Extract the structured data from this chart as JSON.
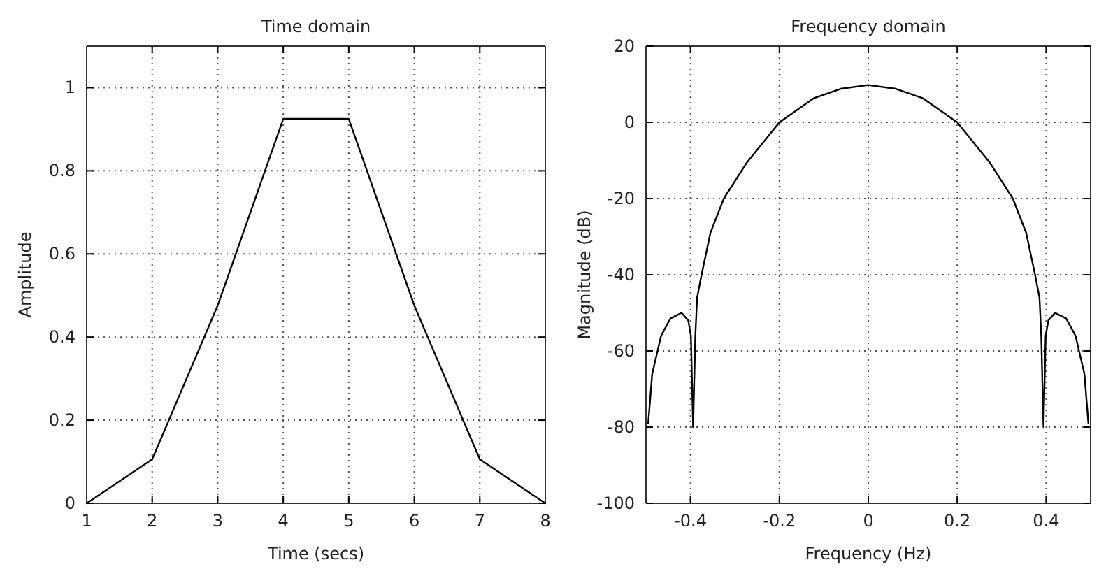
{
  "chart_data": [
    {
      "type": "line",
      "title": "Time domain",
      "xlabel": "Time (secs)",
      "ylabel": "Amplitude",
      "xlim": [
        1,
        8
      ],
      "xticks": [
        1,
        2,
        3,
        4,
        5,
        6,
        7,
        8
      ],
      "ylim": [
        0,
        1.1
      ],
      "yticks": [
        0,
        0.2,
        0.4,
        0.6,
        0.8,
        1
      ],
      "grid": true,
      "series": [
        {
          "color": "#000000",
          "x": [
            1,
            2,
            3,
            4,
            5,
            6,
            7,
            8
          ],
          "values": [
            0,
            0.106,
            0.476,
            0.925,
            0.925,
            0.476,
            0.106,
            0
          ]
        }
      ]
    },
    {
      "type": "line",
      "title": "Frequency domain",
      "xlabel": "Frequency (Hz)",
      "ylabel": "Magnitude (dB)",
      "xlim": [
        -0.5,
        0.5
      ],
      "xticks": [
        -0.4,
        -0.2,
        0,
        0.2,
        0.4
      ],
      "ylim": [
        -100,
        20
      ],
      "yticks": [
        -100,
        -80,
        -60,
        -40,
        -20,
        0,
        20
      ],
      "grid": true,
      "series": [
        {
          "color": "#000000",
          "x": [
            -0.495,
            -0.486,
            -0.466,
            -0.445,
            -0.42,
            -0.405,
            -0.399,
            -0.394,
            -0.389,
            -0.385,
            -0.375,
            -0.355,
            -0.325,
            -0.274,
            -0.2,
            -0.123,
            -0.062,
            0,
            0.062,
            0.123,
            0.2,
            0.274,
            0.325,
            0.355,
            0.375,
            0.385,
            0.389,
            0.394,
            0.399,
            0.405,
            0.42,
            0.445,
            0.466,
            0.486,
            0.495
          ],
          "values": [
            -79,
            -66,
            -56,
            -51.5,
            -50,
            -52,
            -56,
            -80,
            -56,
            -46,
            -40,
            -29,
            -20,
            -10.7,
            0,
            6.3,
            8.8,
            9.8,
            8.8,
            6.3,
            0,
            -10.7,
            -20,
            -29,
            -40,
            -46,
            -56,
            -80,
            -56,
            -52,
            -50,
            -51.5,
            -56,
            -66,
            -79
          ]
        }
      ]
    }
  ]
}
